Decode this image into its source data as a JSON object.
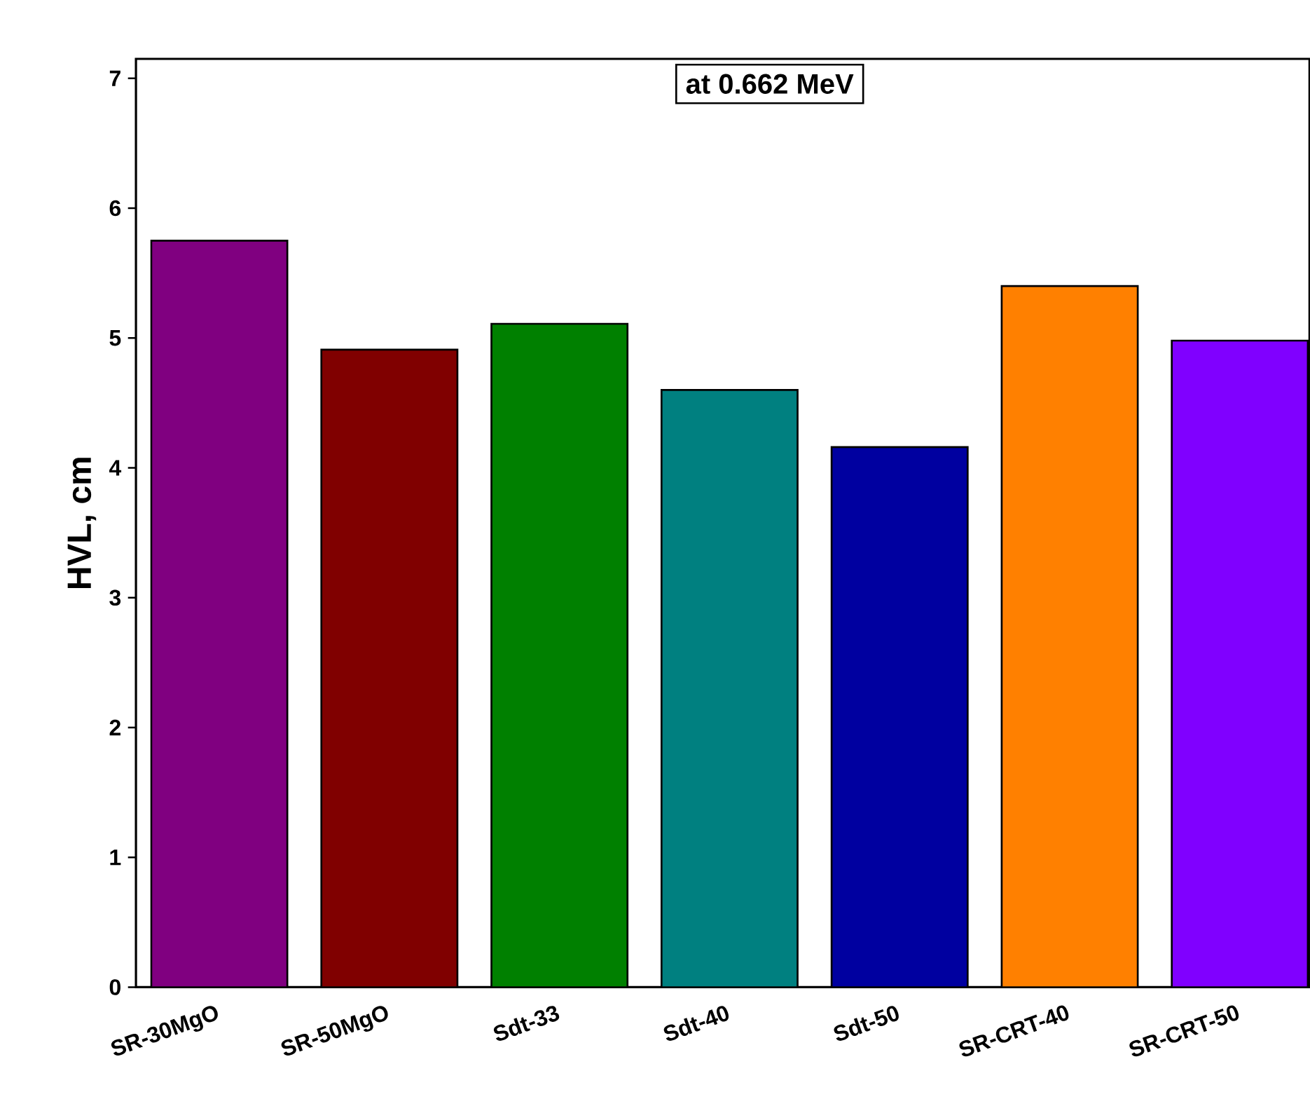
{
  "chart_data": {
    "type": "bar",
    "ylabel": "HVL, cm",
    "categories": [
      "SR-30MgO",
      "SR-50MgO",
      "Sdt-33",
      "Sdt-40",
      "Sdt-50",
      "SR-CRT-40",
      "SR-CRT-50"
    ],
    "values": [
      5.75,
      4.91,
      5.11,
      4.6,
      4.16,
      5.4,
      4.98
    ],
    "colors": [
      "#800080",
      "#800000",
      "#008000",
      "#008080",
      "#0000a0",
      "#ff8000",
      "#8000ff"
    ],
    "ylim": [
      0,
      7.15
    ],
    "yticks": [
      0,
      1,
      2,
      3,
      4,
      5,
      6,
      7
    ],
    "annotations": [
      "at 0.662 MeV"
    ]
  }
}
